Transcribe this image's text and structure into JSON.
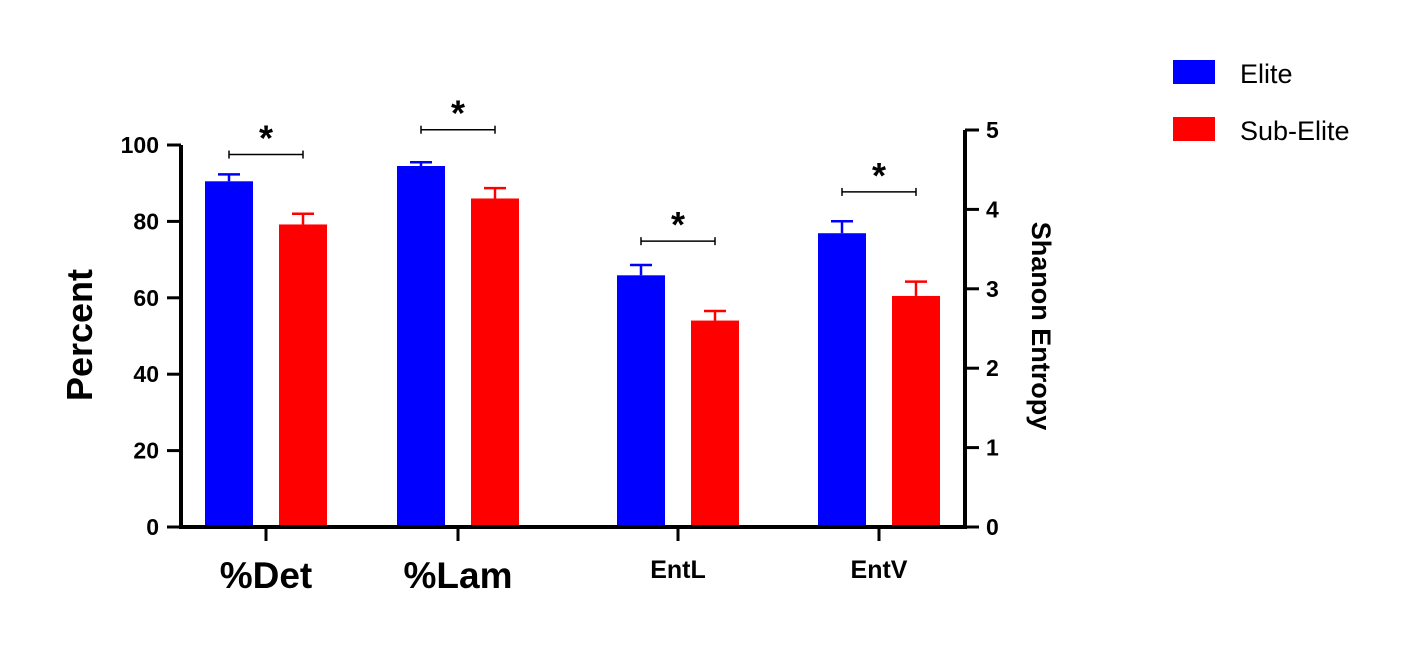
{
  "chart_data": {
    "type": "bar",
    "title": "",
    "xlabel": "",
    "ylabel": "Percent",
    "y2label": "Shanon Entropy",
    "ylim": [
      0,
      100
    ],
    "y2lim": [
      0,
      5
    ],
    "yticks": [
      "0",
      "20",
      "40",
      "60",
      "80",
      "100"
    ],
    "y2ticks": [
      "0",
      "1",
      "2",
      "3",
      "4",
      "5"
    ],
    "grid": false,
    "legend_position": "top-right",
    "categories": [
      "%Det",
      "%Lam",
      "EntL",
      "EntV"
    ],
    "category_axis": [
      "left",
      "left",
      "right",
      "right"
    ],
    "series": [
      {
        "name": "Elite",
        "color": "#0000ff",
        "values": [
          90.5,
          94.5,
          3.17,
          3.7
        ],
        "errors": [
          1.8,
          1.0,
          0.13,
          0.15
        ]
      },
      {
        "name": "Sub-Elite",
        "color": "#ff0000",
        "values": [
          79.2,
          86.0,
          2.6,
          2.91
        ],
        "errors": [
          2.8,
          2.7,
          0.12,
          0.18
        ]
      }
    ],
    "annotations": [
      {
        "category": "%Det",
        "text": "*",
        "bracket_level": 97.5
      },
      {
        "category": "%Lam",
        "text": "*",
        "bracket_level": 104
      },
      {
        "category": "EntL",
        "text": "*",
        "bracket_level": 3.6
      },
      {
        "category": "EntV",
        "text": "*",
        "bracket_level": 4.22
      }
    ]
  }
}
